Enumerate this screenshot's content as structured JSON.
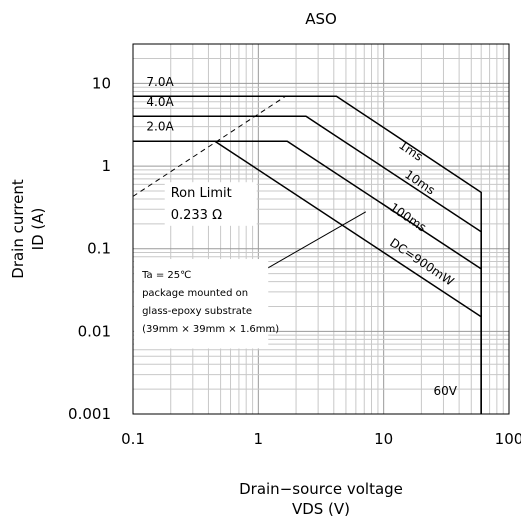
{
  "chart_data": {
    "type": "line",
    "title": "ASO",
    "xlabel_line1": "Drain−source voltage",
    "xlabel_line2": "VDS (V)",
    "ylabel_line1": "Drain current",
    "ylabel_line2": "ID (A)",
    "x_scale": "log",
    "y_scale": "log",
    "xlim": [
      0.1,
      100
    ],
    "ylim": [
      0.001,
      30
    ],
    "grid": true,
    "x_ticks": [
      {
        "value": 0.1,
        "label": "0.1"
      },
      {
        "value": 1,
        "label": "1"
      },
      {
        "value": 10,
        "label": "10"
      },
      {
        "value": 100,
        "label": "100"
      }
    ],
    "y_ticks": [
      {
        "value": 10,
        "label": "10"
      },
      {
        "value": 1,
        "label": "1"
      },
      {
        "value": 0.1,
        "label": "0.1"
      },
      {
        "value": 0.01,
        "label": "0.01"
      },
      {
        "value": 0.001,
        "label": "0.001"
      }
    ],
    "series": [
      {
        "name": "1ms",
        "points": [
          [
            0.1,
            7.0
          ],
          [
            4.2,
            7.0
          ],
          [
            60,
            0.48
          ],
          [
            60,
            0.001
          ]
        ],
        "label": {
          "text": "1ms",
          "x": 13,
          "y": 1.7,
          "rotate": 34
        }
      },
      {
        "name": "10ms",
        "points": [
          [
            0.1,
            4.0
          ],
          [
            2.4,
            4.0
          ],
          [
            60,
            0.16
          ],
          [
            60,
            0.001
          ]
        ],
        "label": {
          "text": "10ms",
          "x": 14.5,
          "y": 0.75,
          "rotate": 34
        }
      },
      {
        "name": "100ms",
        "points": [
          [
            0.1,
            2.0
          ],
          [
            1.7,
            2.0
          ],
          [
            60,
            0.057
          ],
          [
            60,
            0.001
          ]
        ],
        "label": {
          "text": "100ms",
          "x": 11,
          "y": 0.3,
          "rotate": 34
        }
      },
      {
        "name": "DC=900mW",
        "points": [
          [
            0.1,
            2.0
          ],
          [
            0.45,
            2.0
          ],
          [
            60,
            0.015
          ],
          [
            60,
            0.001
          ]
        ],
        "label": {
          "text": "DC=900mW",
          "x": 11,
          "y": 0.112,
          "rotate": 34
        }
      }
    ],
    "ron_limit": {
      "points": [
        [
          0.1,
          0.43
        ],
        [
          1.65,
          7.0
        ]
      ],
      "label_line1": "Ron Limit",
      "label_line2": "0.233 Ω",
      "label_x": 0.2,
      "label_y1": 0.42,
      "label_y2": 0.23
    },
    "level_labels": [
      {
        "text": "7.0A",
        "x": 0.128,
        "y": 9.3
      },
      {
        "text": "4.0A",
        "x": 0.128,
        "y": 5.3
      },
      {
        "text": "2.0A",
        "x": 0.128,
        "y": 2.7
      }
    ],
    "pointer_line": {
      "points": [
        [
          0.95,
          0.048
        ],
        [
          7.2,
          0.28
        ]
      ]
    },
    "voltage_label": {
      "text": "60V",
      "x": 25,
      "y": 0.0017
    },
    "note": {
      "lines": [
        "Ta = 25℃",
        "package mounted on",
        "glass-epoxy substrate",
        "(39mm × 39mm × 1.6mm)"
      ],
      "box_x": [
        0.102,
        1.2
      ],
      "box_y": [
        0.075,
        0.0062
      ]
    }
  }
}
